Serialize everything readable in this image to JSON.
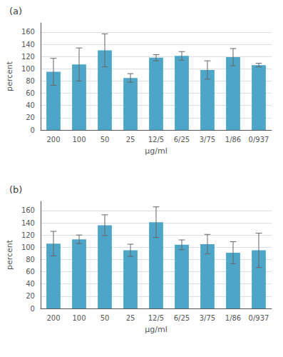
{
  "chart_data": [
    {
      "type": "bar",
      "title": "(a)",
      "categories": [
        "200",
        "100",
        "50",
        "25",
        "12/5",
        "6/25",
        "3/75",
        "1/86",
        "0/937"
      ],
      "values": [
        95,
        107,
        130,
        85,
        118,
        121,
        98,
        119,
        106
      ],
      "errors": [
        22,
        27,
        27,
        7,
        5,
        7,
        15,
        14,
        3
      ],
      "color": "#4da6c8",
      "xlabel": "μg/ml",
      "ylabel": "percent",
      "ylim": [
        0,
        175
      ],
      "yticks": [
        0,
        20,
        40,
        60,
        80,
        100,
        120,
        140,
        160
      ],
      "grid": true
    },
    {
      "type": "bar",
      "title": "(b)",
      "categories": [
        "200",
        "100",
        "50",
        "25",
        "12/5",
        "6/25",
        "3/75",
        "1/86",
        "0/937"
      ],
      "values": [
        106,
        113,
        136,
        95,
        141,
        104,
        105,
        91,
        95
      ],
      "errors": [
        20,
        7,
        17,
        10,
        25,
        8,
        16,
        18,
        28
      ],
      "color": "#4da6c8",
      "xlabel": "μg/ml",
      "ylabel": "percent",
      "ylim": [
        0,
        175
      ],
      "yticks": [
        0,
        20,
        40,
        60,
        80,
        100,
        120,
        140,
        160
      ],
      "grid": true
    }
  ]
}
